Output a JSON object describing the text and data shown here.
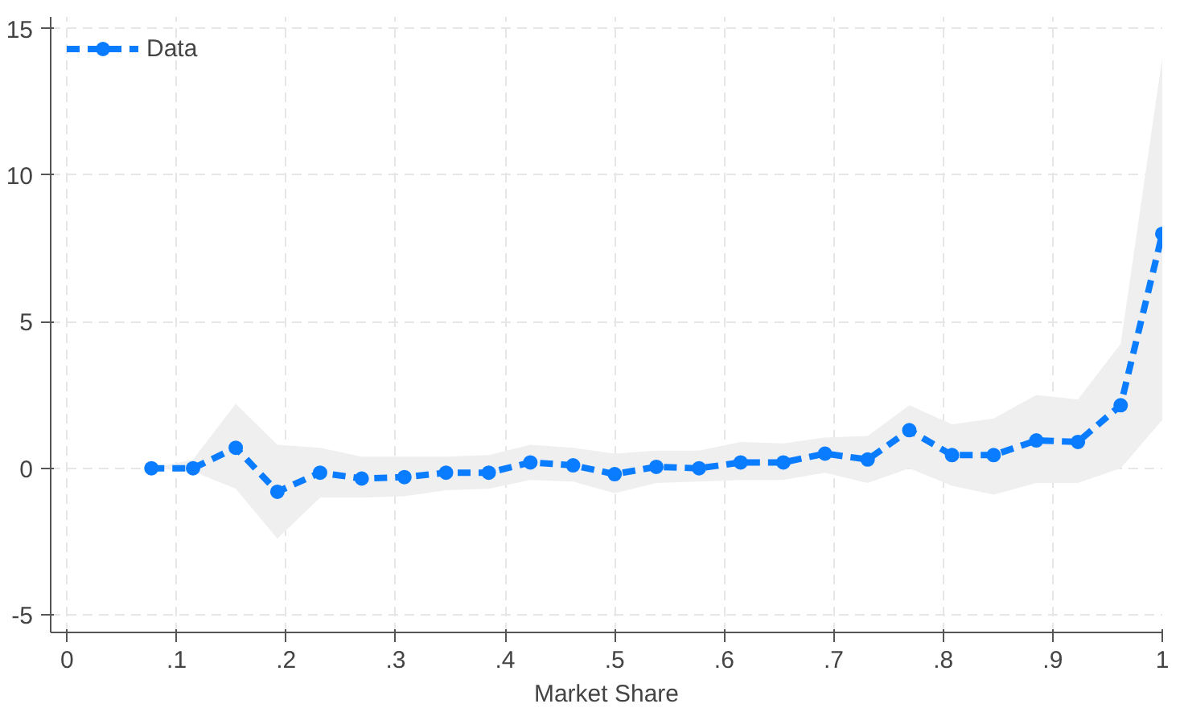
{
  "chart_data": {
    "type": "line",
    "xlabel": "Market Share",
    "xlim": [
      -0.015,
      1.0
    ],
    "ylim": [
      -5.6,
      15.4
    ],
    "xticks": [
      0,
      {
        "value": 0.1,
        "label": ".1"
      },
      {
        "value": 0.2,
        "label": ".2"
      },
      {
        "value": 0.3,
        "label": ".3"
      },
      {
        "value": 0.4,
        "label": ".4"
      },
      {
        "value": 0.5,
        "label": ".5"
      },
      {
        "value": 0.6,
        "label": ".6"
      },
      {
        "value": 0.7,
        "label": ".7"
      },
      {
        "value": 0.8,
        "label": ".8"
      },
      {
        "value": 0.9,
        "label": ".9"
      },
      1
    ],
    "yticks": [
      -5,
      0,
      5,
      10,
      15
    ],
    "grid": true,
    "legend": "top left",
    "marker": "circle",
    "line_style": "dashed",
    "series": [
      {
        "name": "Data",
        "color": "#0a7cff",
        "x": [
          0.077,
          0.115,
          0.154,
          0.192,
          0.231,
          0.269,
          0.308,
          0.346,
          0.385,
          0.423,
          0.462,
          0.5,
          0.538,
          0.577,
          0.615,
          0.654,
          0.692,
          0.731,
          0.769,
          0.808,
          0.846,
          0.885,
          0.923,
          0.962,
          1.0
        ],
        "values": [
          0,
          0,
          0.7,
          -0.8,
          -0.15,
          -0.35,
          -0.3,
          -0.15,
          -0.15,
          0.2,
          0.1,
          -0.2,
          0.05,
          0,
          0.2,
          0.2,
          0.5,
          0.3,
          1.3,
          0.45,
          0.45,
          0.95,
          0.9,
          2.15,
          8.0
        ],
        "lower": [
          0,
          -0.1,
          -0.7,
          -2.4,
          -1.0,
          -1.0,
          -0.95,
          -0.75,
          -0.7,
          -0.4,
          -0.45,
          -0.85,
          -0.5,
          -0.45,
          -0.4,
          -0.4,
          -0.15,
          -0.5,
          0.0,
          -0.6,
          -0.9,
          -0.5,
          -0.5,
          0.0,
          1.65
        ],
        "upper": [
          0,
          0.3,
          2.2,
          0.8,
          0.7,
          0.4,
          0.4,
          0.4,
          0.45,
          0.8,
          0.7,
          0.5,
          0.6,
          0.6,
          0.9,
          0.85,
          1.05,
          1.1,
          2.15,
          1.5,
          1.7,
          2.5,
          2.35,
          4.25,
          14.0
        ]
      }
    ]
  }
}
